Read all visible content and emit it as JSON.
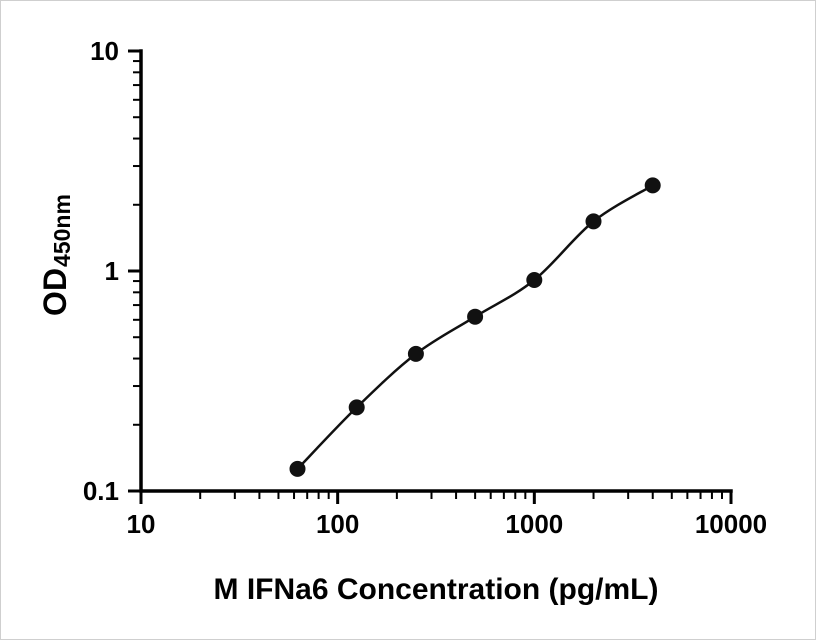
{
  "figure": {
    "background": "#ffffff",
    "axis_color": "#000000",
    "text_color": "#000000"
  },
  "chart_data": {
    "type": "scatter",
    "xlabel": "M IFNa6 Concentration (pg/mL)",
    "ylabel_main": "OD",
    "ylabel_subscript": "450nm",
    "x_scale": "log",
    "y_scale": "log",
    "xlim": [
      10,
      10000
    ],
    "ylim": [
      0.1,
      10
    ],
    "x_ticks": [
      10,
      100,
      1000,
      10000
    ],
    "x_tick_labels": [
      "10",
      "100",
      "1000",
      "10000"
    ],
    "y_ticks": [
      0.1,
      1,
      10
    ],
    "y_tick_labels": [
      "0.1",
      "1",
      "10"
    ],
    "minor_ticks": true,
    "grid": false,
    "legend": "none",
    "axis_color": "#000000",
    "series": [
      {
        "marker": "circle",
        "marker_color": "#111111",
        "line_color": "#111111",
        "fit": "smooth-curve",
        "points": [
          {
            "x": 62.5,
            "y": 0.126
          },
          {
            "x": 125,
            "y": 0.24
          },
          {
            "x": 250,
            "y": 0.42
          },
          {
            "x": 500,
            "y": 0.62
          },
          {
            "x": 1000,
            "y": 0.91
          },
          {
            "x": 2000,
            "y": 1.68
          },
          {
            "x": 4000,
            "y": 2.45
          }
        ]
      }
    ]
  }
}
